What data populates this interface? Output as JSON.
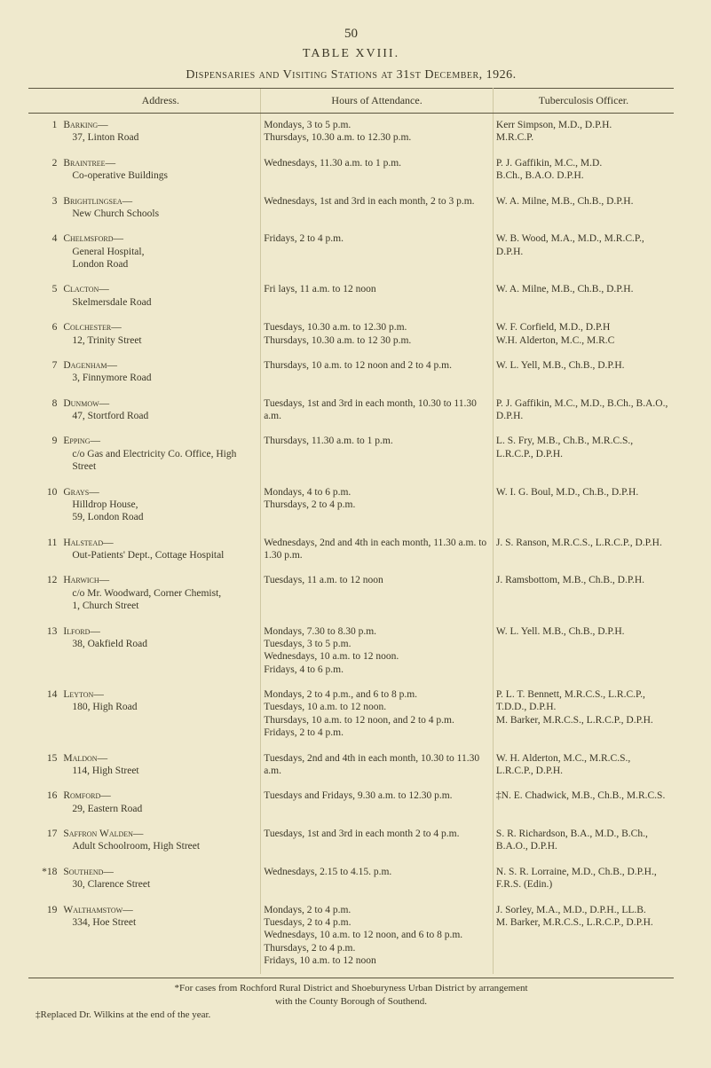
{
  "page_number": "50",
  "table_title": "TABLE XVIII.",
  "subtitle": "Dispensaries and Visiting Stations at 31st December, 1926.",
  "columns": {
    "address": "Address.",
    "hours": "Hours of Attendance.",
    "officer": "Tuberculosis Officer."
  },
  "rows": [
    {
      "n": "1",
      "name": "Barking—",
      "sub": "37, Linton Road",
      "hours": "Mondays, 3 to 5 p.m.\nThursdays, 10.30 a.m. to 12.30 p.m.",
      "officer": "Kerr Simpson, M.D., D.P.H.\nM.R.C.P."
    },
    {
      "n": "2",
      "name": "Braintree—",
      "sub": "Co-operative Buildings",
      "hours": "Wednesdays, 11.30 a.m. to 1 p.m.",
      "officer": "P. J. Gaffikin, M.C., M.D.\nB.Ch., B.A.O.  D.P.H."
    },
    {
      "n": "3",
      "name": "Brightlingsea—",
      "sub": "New Church Schools",
      "hours": "Wednesdays, 1st and 3rd in each month, 2 to 3 p.m.",
      "officer": "W. A. Milne, M.B., Ch.B., D.P.H."
    },
    {
      "n": "4",
      "name": "Chelmsford—",
      "sub": "General Hospital,\nLondon Road",
      "hours": "Fridays, 2 to 4 p.m.",
      "officer": "W. B. Wood, M.A., M.D., M.R.C.P., D.P.H."
    },
    {
      "n": "5",
      "name": "Clacton—",
      "sub": "Skelmersdale Road",
      "hours": "Fri lays, 11 a.m. to 12 noon",
      "officer": "W. A. Milne, M.B., Ch.B., D.P.H."
    },
    {
      "n": "6",
      "name": "Colchester—",
      "sub": "12, Trinity Street",
      "hours": "Tuesdays, 10.30 a.m. to 12.30 p.m.\nThursdays, 10.30 a.m. to 12 30 p.m.",
      "officer": "W. F. Corfield, M.D., D.P.H\nW.H. Alderton, M.C., M.R.C"
    },
    {
      "n": "7",
      "name": "Dagenham—",
      "sub": "3, Finnymore Road",
      "hours": "Thursdays, 10 a.m. to 12 noon and 2 to 4 p.m.",
      "officer": "W. L. Yell, M.B., Ch.B., D.P.H."
    },
    {
      "n": "8",
      "name": "Dunmow—",
      "sub": "47, Stortford Road",
      "hours": "Tuesdays, 1st and 3rd in each month, 10.30 to 11.30 a.m.",
      "officer": "P. J. Gaffikin, M.C., M.D., B.Ch., B.A.O., D.P.H."
    },
    {
      "n": "9",
      "name": "Epping—",
      "sub": "c/o Gas and Electricity Co. Office, High Street",
      "hours": "Thursdays, 11.30 a.m. to 1 p.m.",
      "officer": "L. S. Fry, M.B., Ch.B., M.R.C.S., L.R.C.P., D.P.H."
    },
    {
      "n": "10",
      "name": "Grays—",
      "sub": "Hilldrop House,\n59, London Road",
      "hours": "Mondays, 4 to 6 p.m.\nThursdays, 2 to 4 p.m.",
      "officer": "W. I. G. Boul, M.D., Ch.B., D.P.H."
    },
    {
      "n": "11",
      "name": "Halstead—",
      "sub": "Out-Patients' Dept., Cottage Hospital",
      "hours": "Wednesdays, 2nd and 4th in each month, 11.30 a.m. to 1.30 p.m.",
      "officer": "J. S. Ranson, M.R.C.S., L.R.C.P., D.P.H."
    },
    {
      "n": "12",
      "name": "Harwich—",
      "sub": "c/o Mr. Woodward, Corner Chemist,\n1, Church Street",
      "hours": "Tuesdays, 11 a.m. to 12 noon",
      "officer": "J. Ramsbottom, M.B., Ch.B., D.P.H."
    },
    {
      "n": "13",
      "name": "Ilford—",
      "sub": "38, Oakfield Road",
      "hours": "Mondays, 7.30 to 8.30 p.m.\nTuesdays, 3 to 5 p.m.\nWednesdays, 10 a.m. to 12 noon.\nFridays, 4 to 6 p.m.",
      "officer": "W. L. Yell. M.B., Ch.B., D.P.H."
    },
    {
      "n": "14",
      "name": "Leyton—",
      "sub": "180, High Road",
      "hours": "Mondays, 2 to 4 p.m., and 6 to 8 p.m.\nTuesdays, 10 a.m. to 12 noon.\nThursdays, 10 a.m. to 12 noon, and 2 to 4 p.m.\nFridays, 2 to 4 p.m.",
      "officer": "P. L. T. Bennett, M.R.C.S., L.R.C.P., T.D.D., D.P.H.\nM. Barker, M.R.C.S., L.R.C.P., D.P.H."
    },
    {
      "n": "15",
      "name": "Maldon—",
      "sub": "114, High Street",
      "hours": "Tuesdays, 2nd and 4th in each month, 10.30 to 11.30 a.m.",
      "officer": "W. H. Alderton, M.C., M.R.C.S., L.R.C.P., D.P.H."
    },
    {
      "n": "16",
      "name": "Romford—",
      "sub": "29, Eastern Road",
      "hours": "Tuesdays and Fridays, 9.30 a.m. to 12.30 p.m.",
      "officer": "‡N. E. Chadwick, M.B., Ch.B., M.R.C.S."
    },
    {
      "n": "17",
      "name": "Saffron Walden—",
      "sub": "Adult Schoolroom, High Street",
      "hours": "Tuesdays, 1st and 3rd in each month 2 to 4 p.m.",
      "officer": "S. R. Richardson, B.A., M.D., B.Ch., B.A.O., D.P.H."
    },
    {
      "n": "*18",
      "name": "Southend—",
      "sub": "30, Clarence Street",
      "hours": "Wednesdays, 2.15 to 4.15. p.m.",
      "officer": "N. S. R. Lorraine, M.D., Ch.B., D.P.H., F.R.S. (Edin.)"
    },
    {
      "n": "19",
      "name": "Walthamstow—",
      "sub": "334, Hoe Street",
      "hours": "Mondays, 2 to 4 p.m.\nTuesdays, 2 to 4 p.m.\nWednesdays, 10 a.m. to 12 noon, and 6 to 8 p.m.\nThursdays, 2 to 4 p.m.\nFridays, 10 a.m. to 12 noon",
      "officer": "J. Sorley, M.A., M.D., D.P.H., LL.B.\nM. Barker, M.R.C.S., L.R.C.P., D.P.H."
    }
  ],
  "footnote1": "*For cases from Rochford Rural District and Shoeburyness Urban District by arrangement",
  "footnote2": "with the County Borough of Southend.",
  "footnote3": "‡Replaced Dr. Wilkins at the end of the year."
}
